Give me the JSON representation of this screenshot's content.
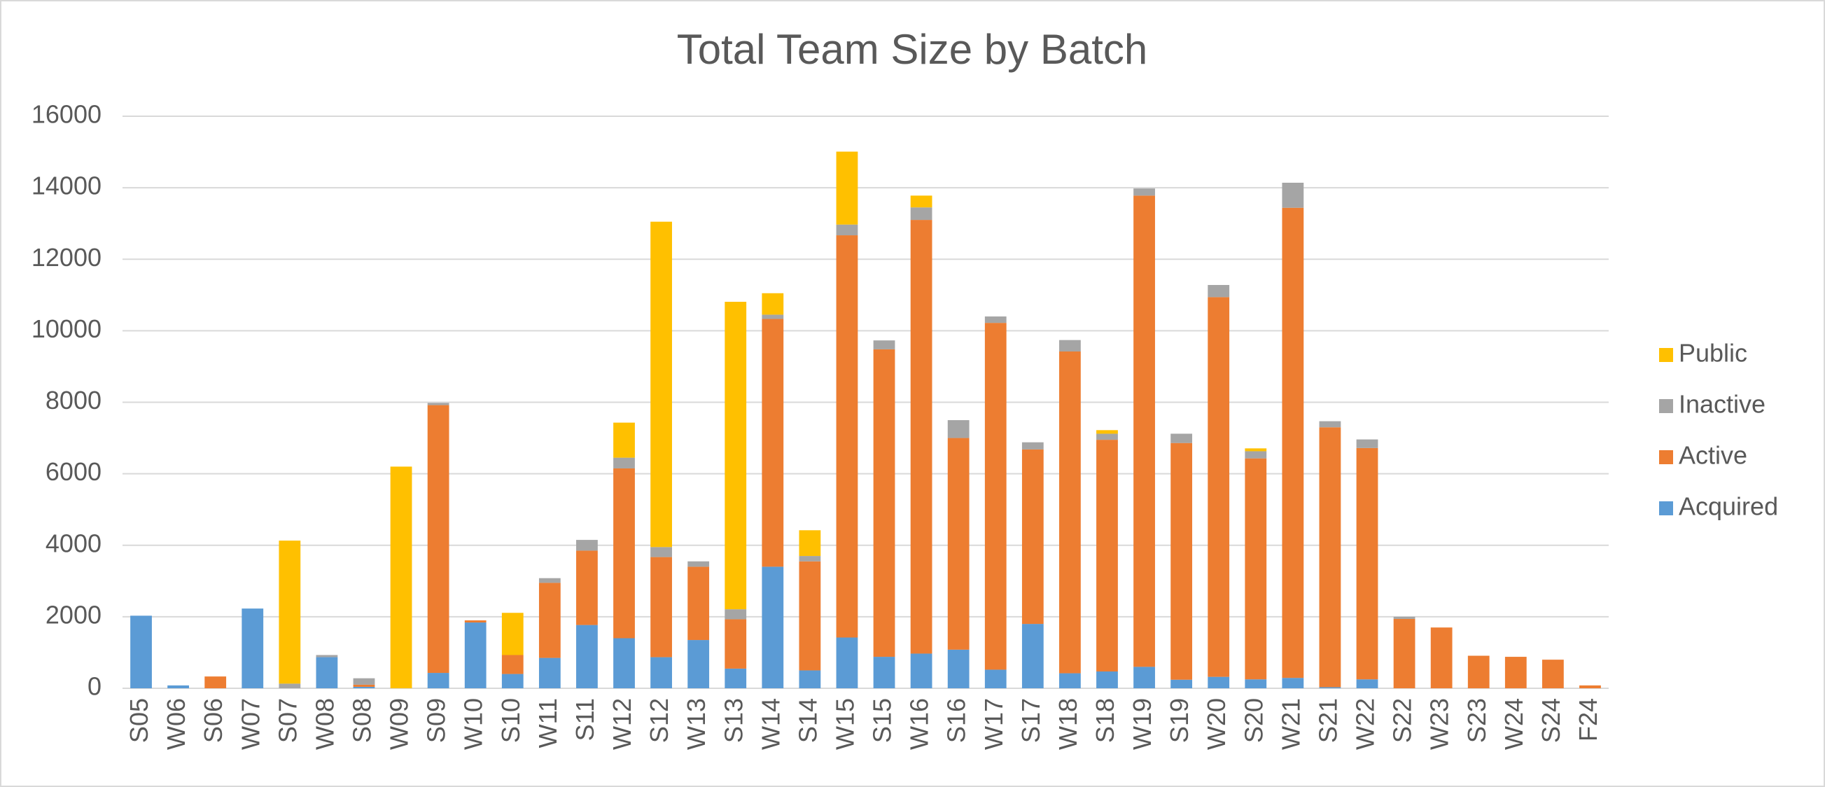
{
  "chart_data": {
    "type": "stacked-bar",
    "title": "Total Team Size by Batch",
    "categories": [
      "S05",
      "W06",
      "S06",
      "W07",
      "S07",
      "W08",
      "S08",
      "W09",
      "S09",
      "W10",
      "S10",
      "W11",
      "S11",
      "W12",
      "S12",
      "W13",
      "S13",
      "W14",
      "S14",
      "W15",
      "S15",
      "W16",
      "S16",
      "W17",
      "S17",
      "W18",
      "S18",
      "W19",
      "S19",
      "W20",
      "S20",
      "W21",
      "S21",
      "W22",
      "S22",
      "W23",
      "S23",
      "W24",
      "S24",
      "F24"
    ],
    "series": [
      {
        "name": "Acquired",
        "color": "#5b9bd5",
        "values": [
          2030,
          80,
          0,
          2230,
          0,
          870,
          40,
          0,
          430,
          1840,
          400,
          850,
          1770,
          1400,
          870,
          1350,
          550,
          3400,
          500,
          1420,
          880,
          970,
          1080,
          520,
          1800,
          420,
          470,
          600,
          240,
          320,
          250,
          290,
          30,
          250,
          0,
          0,
          0,
          0,
          0,
          0
        ]
      },
      {
        "name": "Active",
        "color": "#ed7d31",
        "values": [
          0,
          0,
          330,
          0,
          0,
          0,
          60,
          0,
          7490,
          60,
          530,
          2100,
          2080,
          4750,
          2800,
          2050,
          1380,
          6930,
          3050,
          11250,
          8600,
          12130,
          5920,
          9700,
          4880,
          9000,
          6480,
          13180,
          6620,
          10620,
          6180,
          13150,
          7270,
          6470,
          1940,
          1700,
          910,
          880,
          800,
          80
        ]
      },
      {
        "name": "Inactive",
        "color": "#a5a5a5",
        "values": [
          0,
          0,
          0,
          0,
          130,
          60,
          180,
          0,
          60,
          0,
          0,
          130,
          300,
          300,
          280,
          150,
          280,
          120,
          150,
          300,
          250,
          350,
          500,
          180,
          200,
          320,
          170,
          200,
          260,
          340,
          200,
          700,
          170,
          240,
          60,
          0,
          0,
          0,
          0,
          0
        ]
      },
      {
        "name": "Public",
        "color": "#ffc000",
        "values": [
          0,
          0,
          0,
          0,
          4000,
          0,
          0,
          6200,
          0,
          0,
          1180,
          0,
          0,
          980,
          9100,
          0,
          8600,
          600,
          720,
          2040,
          0,
          330,
          0,
          0,
          0,
          0,
          100,
          0,
          0,
          0,
          80,
          0,
          0,
          0,
          0,
          0,
          0,
          0,
          0,
          0
        ]
      }
    ],
    "ylim": [
      0,
      16000
    ],
    "yticks": [
      0,
      2000,
      4000,
      6000,
      8000,
      10000,
      12000,
      14000,
      16000
    ],
    "grid": true,
    "legend": "right"
  }
}
